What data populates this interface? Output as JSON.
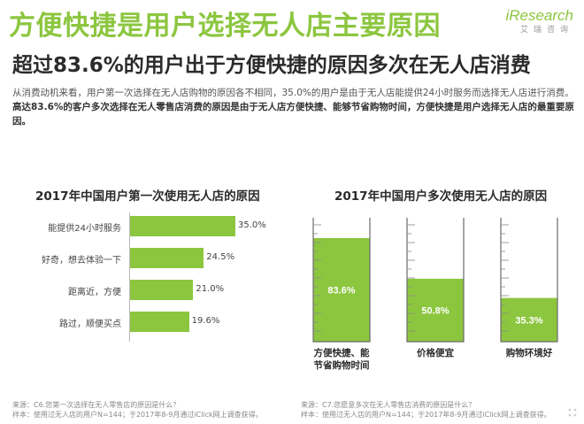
{
  "header": {
    "title": "方便快捷是用户选择无人店主要原因",
    "logo_word": "iResearch",
    "logo_sub": "艾瑞咨询",
    "subtitle": "超过83.6%的用户出于方便快捷的原因多次在无人店消费"
  },
  "description": {
    "normal": "从消费动机来看，用户第一次选择在无人店购物的原因各不相同，35.0%的用户是由于无人店能提供24小时服务而选择无人店进行消费。",
    "bold": "高达83.6%的客户多次选择在无人零售店消费的原因是由于无人店方便快捷、能够节省购物时间，方便快捷是用户选择无人店的最重要原因。"
  },
  "chart_data": [
    {
      "type": "bar",
      "orientation": "horizontal",
      "title": "2017年中国用户第一次使用无人店的原因",
      "categories": [
        "能提供24小时服务",
        "好奇，想去体验一下",
        "距离近，方便",
        "路过，顺便买点"
      ],
      "values": [
        35.0,
        24.5,
        21.0,
        19.6
      ],
      "value_labels": [
        "35.0%",
        "24.5%",
        "21.0%",
        "19.6%"
      ],
      "color": "#8cc63f"
    },
    {
      "type": "bar",
      "style": "beaker",
      "title": "2017年中国用户多次使用无人店的原因",
      "categories": [
        "方便快捷、能节省购物时间",
        "价格便宜",
        "购物环境好"
      ],
      "category_lines": [
        [
          "方便快捷、能",
          "节省购物时间"
        ],
        [
          "价格便宜"
        ],
        [
          "购物环境好"
        ]
      ],
      "values": [
        83.6,
        50.8,
        35.3
      ],
      "value_labels": [
        "83.6%",
        "50.8%",
        "35.3%"
      ],
      "color": "#8cc63f"
    }
  ],
  "sources": {
    "left": [
      "来源：C6.您第一次选择在无人零售店的原因是什么？",
      "样本：使用过无人店的用户N=144；于2017年8-9月通过iClick网上调查获得。"
    ],
    "right": [
      "来源：C7.您愿意多次在无人零售店消费的原因是什么？",
      "样本：使用过无人店的用户N=144；于2017年8-9月通过iClick网上调查获得。"
    ]
  },
  "colors": {
    "accent": "#8cc63f",
    "text": "#2b2b2b"
  }
}
